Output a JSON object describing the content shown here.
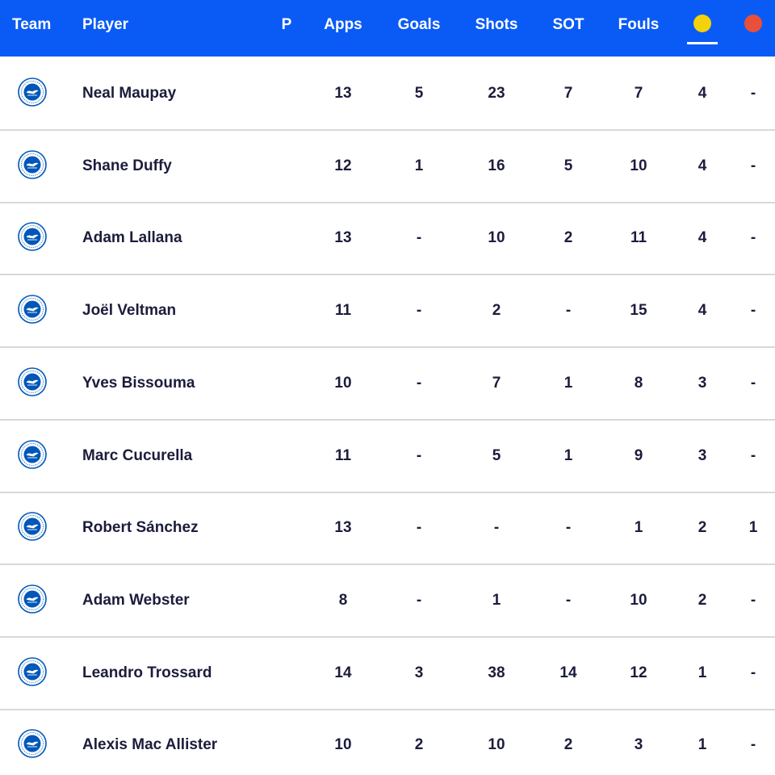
{
  "colors": {
    "header_bg": "#0a5bf5",
    "yellow_card": "#f5d20a",
    "red_card": "#e8503a",
    "text": "#1c1c3c",
    "badge_blue": "#0057b8"
  },
  "header": {
    "team": "Team",
    "player": "Player",
    "p": "P",
    "apps": "Apps",
    "goals": "Goals",
    "shots": "Shots",
    "sot": "SOT",
    "fouls": "Fouls",
    "yellow_icon": "yellow-card-icon",
    "red_icon": "red-card-icon",
    "sorted_by": "yellow_cards"
  },
  "rows": [
    {
      "badge": "brighton-crest-icon",
      "player": "Neal Maupay",
      "apps": "13",
      "goals": "5",
      "shots": "23",
      "sot": "7",
      "fouls": "7",
      "yellow": "4",
      "red": "-"
    },
    {
      "badge": "brighton-crest-icon",
      "player": "Shane Duffy",
      "apps": "12",
      "goals": "1",
      "shots": "16",
      "sot": "5",
      "fouls": "10",
      "yellow": "4",
      "red": "-"
    },
    {
      "badge": "brighton-crest-icon",
      "player": "Adam Lallana",
      "apps": "13",
      "goals": "-",
      "shots": "10",
      "sot": "2",
      "fouls": "11",
      "yellow": "4",
      "red": "-"
    },
    {
      "badge": "brighton-crest-icon",
      "player": "Joël Veltman",
      "apps": "11",
      "goals": "-",
      "shots": "2",
      "sot": "-",
      "fouls": "15",
      "yellow": "4",
      "red": "-"
    },
    {
      "badge": "brighton-crest-icon",
      "player": "Yves Bissouma",
      "apps": "10",
      "goals": "-",
      "shots": "7",
      "sot": "1",
      "fouls": "8",
      "yellow": "3",
      "red": "-"
    },
    {
      "badge": "brighton-crest-icon",
      "player": "Marc Cucurella",
      "apps": "11",
      "goals": "-",
      "shots": "5",
      "sot": "1",
      "fouls": "9",
      "yellow": "3",
      "red": "-"
    },
    {
      "badge": "brighton-crest-icon",
      "player": "Robert Sánchez",
      "apps": "13",
      "goals": "-",
      "shots": "-",
      "sot": "-",
      "fouls": "1",
      "yellow": "2",
      "red": "1"
    },
    {
      "badge": "brighton-crest-icon",
      "player": "Adam Webster",
      "apps": "8",
      "goals": "-",
      "shots": "1",
      "sot": "-",
      "fouls": "10",
      "yellow": "2",
      "red": "-"
    },
    {
      "badge": "brighton-crest-icon",
      "player": "Leandro Trossard",
      "apps": "14",
      "goals": "3",
      "shots": "38",
      "sot": "14",
      "fouls": "12",
      "yellow": "1",
      "red": "-"
    },
    {
      "badge": "brighton-crest-icon",
      "player": "Alexis Mac Allister",
      "apps": "10",
      "goals": "2",
      "shots": "10",
      "sot": "2",
      "fouls": "3",
      "yellow": "1",
      "red": "-"
    }
  ]
}
